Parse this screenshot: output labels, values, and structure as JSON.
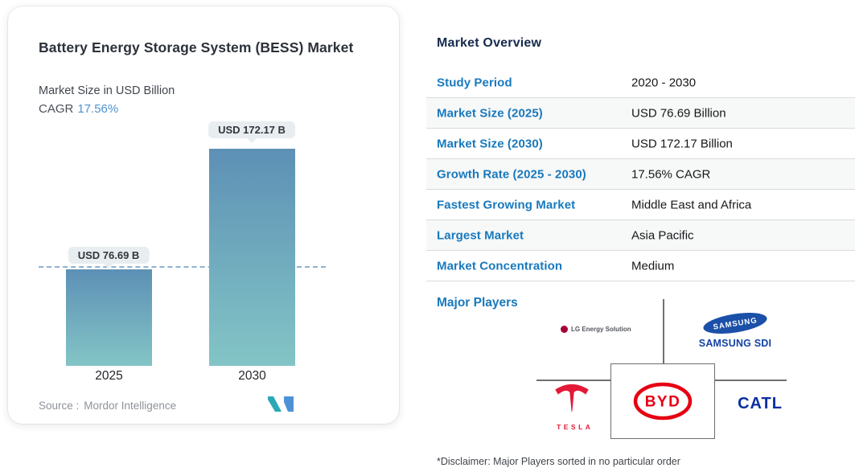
{
  "chart_data": {
    "type": "bar",
    "title": "Battery Energy Storage System (BESS) Market",
    "subtitle": "Market Size in USD Billion",
    "categories": [
      "2025",
      "2030"
    ],
    "values": [
      76.69,
      172.17
    ],
    "value_labels": [
      "USD 76.69 B",
      "USD 172.17 B"
    ],
    "xlabel": "",
    "ylabel": "Market Size in USD Billion",
    "ylim": [
      0,
      180
    ],
    "grid": "off",
    "legend": "none",
    "dashed_reference_line_at": 76.69,
    "bar_gradient_top": "#5d90b5",
    "bar_gradient_bottom": "#83c5c6",
    "dashed_line_color": "#8fb3d1"
  },
  "left_card": {
    "title": "Battery Energy Storage System (BESS) Market",
    "subtitle": "Market Size in USD Billion",
    "cagr_label": "CAGR",
    "cagr_value": "17.56%",
    "source_label": "Source :",
    "source_name": "Mordor Intelligence",
    "logo": "mordor-intelligence-mark"
  },
  "overview": {
    "heading": "Market Overview",
    "rows": [
      {
        "label": "Study Period",
        "value": "2020 - 2030"
      },
      {
        "label": "Market Size (2025)",
        "value": "USD 76.69 Billion"
      },
      {
        "label": "Market Size (2030)",
        "value": "USD 172.17 Billion"
      },
      {
        "label": "Growth Rate (2025 - 2030)",
        "value": "17.56% CAGR"
      },
      {
        "label": "Fastest Growing Market",
        "value": "Middle East and Africa"
      },
      {
        "label": "Largest Market",
        "value": "Asia Pacific"
      },
      {
        "label": "Market Concentration",
        "value": "Medium"
      }
    ],
    "major_players_label": "Major Players",
    "players": [
      {
        "name": "LG Energy Solution"
      },
      {
        "name": "SAMSUNG SDI",
        "logo_text": "SAMSUNG"
      },
      {
        "name": "TESLA"
      },
      {
        "name": "BYD"
      },
      {
        "name": "CATL"
      }
    ],
    "disclaimer": "*Disclaimer: Major Players sorted in no particular order"
  },
  "colors": {
    "accent_blue": "#1879bd",
    "heading_navy": "#152a4d",
    "cagr_blue": "#4f93ce",
    "tesla_red": "#e31937",
    "byd_red": "#e60012",
    "samsung_blue": "#1b50a8",
    "catl_navy": "#0a2f9f",
    "lg_magenta": "#a50034",
    "mi_teal": "#2aa8b5",
    "mi_blue": "#4e92d6"
  }
}
